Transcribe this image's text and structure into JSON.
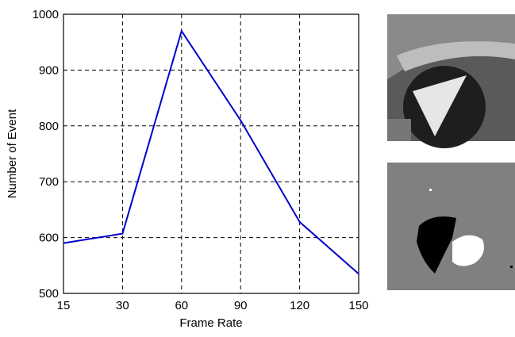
{
  "chart_data": {
    "type": "line",
    "x_label": "Frame Rate",
    "y_label": "Number of Event",
    "categories": [
      "15",
      "30",
      "60",
      "90",
      "120",
      "150"
    ],
    "values": [
      590,
      607,
      970,
      810,
      628,
      535
    ],
    "color": "#0000cc",
    "ylim": [
      500,
      1000
    ],
    "yticks": [
      500,
      600,
      700,
      800,
      900,
      1000
    ],
    "grid": true
  }
}
